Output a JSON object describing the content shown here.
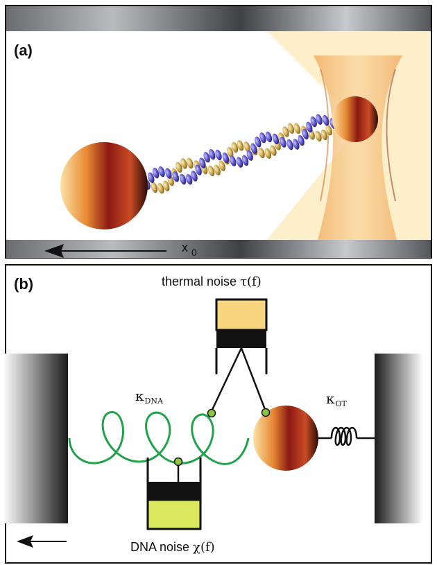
{
  "panel_a": {
    "label": "(a)",
    "displacement_symbol": "x",
    "displacement_sub": "0"
  },
  "panel_b": {
    "label": "(b)",
    "thermal_noise_text": "thermal noise",
    "thermal_noise_symbol": "τ(f)",
    "dna_noise_text": "DNA noise",
    "dna_noise_symbol": "χ(f)",
    "kappa_symbol": "κ",
    "kappa_dna_sub": "DNA",
    "kappa_ot_sub": "OT"
  },
  "colors": {
    "spring_green": "#1fa24a",
    "node_green": "#8dc63f",
    "thermal_damper_fill": "#f7d57e",
    "dna_damper_fill": "#d9e85c",
    "dna_strand_gold": "#c9a54a",
    "dna_strand_blue": "#5b53c9"
  },
  "icons": [
    "arrow-left-icon",
    "bead-icon",
    "laser-cone-icon",
    "spring-icon",
    "damper-icon"
  ]
}
